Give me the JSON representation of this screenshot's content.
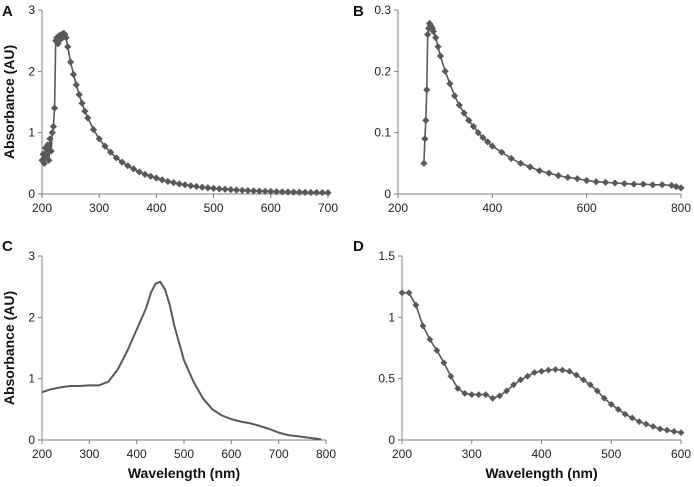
{
  "colors": {
    "series": "#595959",
    "axis": "#7f7f7f",
    "text": "#222222"
  },
  "chart_data": [
    {
      "panel": "A",
      "type": "scatter",
      "marker": "diamond",
      "xlabel": "",
      "ylabel": "Absorbance (AU)",
      "xlim": [
        200,
        700
      ],
      "ylim": [
        0,
        3
      ],
      "xticks": [
        200,
        300,
        400,
        500,
        600,
        700
      ],
      "yticks": [
        0,
        1,
        2,
        3
      ],
      "x": [
        200,
        202,
        204,
        206,
        208,
        210,
        212,
        214,
        216,
        218,
        220,
        222,
        224,
        226,
        228,
        230,
        232,
        234,
        236,
        238,
        240,
        242,
        245,
        250,
        255,
        260,
        265,
        270,
        275,
        280,
        290,
        300,
        310,
        320,
        330,
        340,
        350,
        360,
        370,
        380,
        390,
        400,
        410,
        420,
        430,
        440,
        450,
        460,
        470,
        480,
        490,
        500,
        510,
        520,
        530,
        540,
        550,
        560,
        570,
        580,
        590,
        600,
        610,
        620,
        630,
        640,
        650,
        660,
        670,
        680,
        690,
        700
      ],
      "y": [
        0.55,
        0.65,
        0.5,
        0.75,
        0.6,
        0.8,
        0.55,
        0.9,
        0.7,
        1.0,
        1.1,
        1.4,
        2.5,
        2.55,
        2.45,
        2.58,
        2.52,
        2.6,
        2.55,
        2.62,
        2.6,
        2.55,
        2.4,
        2.15,
        1.95,
        1.78,
        1.62,
        1.48,
        1.35,
        1.24,
        1.05,
        0.9,
        0.78,
        0.68,
        0.59,
        0.52,
        0.46,
        0.41,
        0.36,
        0.32,
        0.29,
        0.26,
        0.23,
        0.205,
        0.185,
        0.165,
        0.15,
        0.135,
        0.122,
        0.11,
        0.1,
        0.092,
        0.084,
        0.077,
        0.071,
        0.065,
        0.06,
        0.055,
        0.051,
        0.047,
        0.044,
        0.041,
        0.038,
        0.035,
        0.033,
        0.031,
        0.029,
        0.027,
        0.025,
        0.024,
        0.022,
        0.021
      ]
    },
    {
      "panel": "B",
      "type": "scatter",
      "marker": "diamond",
      "xlabel": "",
      "ylabel": "",
      "xlim": [
        200,
        800
      ],
      "ylim": [
        0,
        0.3
      ],
      "xticks": [
        200,
        400,
        600,
        800
      ],
      "yticks": [
        0,
        0.1,
        0.2,
        0.3
      ],
      "x": [
        255,
        257,
        259,
        261,
        263,
        265,
        267,
        269,
        271,
        273,
        275,
        280,
        285,
        290,
        300,
        310,
        320,
        330,
        340,
        350,
        360,
        370,
        380,
        390,
        400,
        420,
        440,
        460,
        480,
        500,
        520,
        540,
        560,
        580,
        600,
        620,
        640,
        660,
        680,
        700,
        720,
        740,
        760,
        780,
        790,
        800
      ],
      "y": [
        0.05,
        0.09,
        0.12,
        0.17,
        0.26,
        0.27,
        0.278,
        0.275,
        0.272,
        0.27,
        0.265,
        0.255,
        0.24,
        0.225,
        0.2,
        0.18,
        0.16,
        0.145,
        0.132,
        0.12,
        0.11,
        0.1,
        0.092,
        0.085,
        0.078,
        0.068,
        0.058,
        0.05,
        0.044,
        0.038,
        0.034,
        0.03,
        0.027,
        0.025,
        0.022,
        0.02,
        0.019,
        0.018,
        0.017,
        0.016,
        0.016,
        0.015,
        0.015,
        0.014,
        0.012,
        0.01
      ]
    },
    {
      "panel": "C",
      "type": "line",
      "xlabel": "Wavelength (nm)",
      "ylabel": "Absorbance (AU)",
      "xlim": [
        200,
        800
      ],
      "ylim": [
        0,
        3
      ],
      "xticks": [
        200,
        300,
        400,
        500,
        600,
        700,
        800
      ],
      "yticks": [
        0,
        1,
        2,
        3
      ],
      "x": [
        200,
        220,
        240,
        260,
        280,
        300,
        320,
        340,
        360,
        380,
        400,
        420,
        430,
        440,
        450,
        460,
        470,
        480,
        500,
        520,
        540,
        560,
        580,
        600,
        620,
        640,
        660,
        680,
        700,
        720,
        740,
        760,
        780,
        790
      ],
      "y": [
        0.78,
        0.83,
        0.86,
        0.88,
        0.88,
        0.89,
        0.89,
        0.95,
        1.15,
        1.45,
        1.8,
        2.15,
        2.4,
        2.55,
        2.58,
        2.45,
        2.2,
        1.85,
        1.3,
        0.95,
        0.68,
        0.5,
        0.4,
        0.34,
        0.3,
        0.27,
        0.23,
        0.18,
        0.12,
        0.08,
        0.06,
        0.04,
        0.02,
        0.01
      ]
    },
    {
      "panel": "D",
      "type": "line",
      "marker": "diamond",
      "xlabel": "Wavelength (nm)",
      "ylabel": "",
      "xlim": [
        200,
        600
      ],
      "ylim": [
        0,
        1.5
      ],
      "xticks": [
        200,
        300,
        400,
        500,
        600
      ],
      "yticks": [
        0,
        0.5,
        1,
        1.5
      ],
      "ytick_labels": [
        "0",
        "0.5",
        "1",
        "1.5"
      ],
      "x": [
        200,
        210,
        220,
        230,
        240,
        250,
        260,
        270,
        280,
        290,
        300,
        310,
        320,
        330,
        340,
        350,
        360,
        370,
        380,
        390,
        400,
        410,
        420,
        430,
        440,
        450,
        460,
        470,
        480,
        490,
        500,
        510,
        520,
        530,
        540,
        550,
        560,
        570,
        580,
        590,
        600
      ],
      "y": [
        1.2,
        1.2,
        1.1,
        0.93,
        0.82,
        0.73,
        0.63,
        0.52,
        0.42,
        0.38,
        0.37,
        0.37,
        0.37,
        0.34,
        0.36,
        0.4,
        0.45,
        0.49,
        0.52,
        0.55,
        0.56,
        0.57,
        0.575,
        0.57,
        0.56,
        0.53,
        0.49,
        0.45,
        0.4,
        0.34,
        0.29,
        0.25,
        0.21,
        0.18,
        0.15,
        0.13,
        0.11,
        0.09,
        0.08,
        0.07,
        0.06
      ]
    }
  ]
}
